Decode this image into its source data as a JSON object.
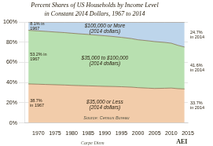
{
  "chart_data": {
    "type": "area",
    "title": "Percent Shares of US Households by Income Level",
    "subtitle": "in Constant 2014 Dollars, 1967 to 2014",
    "x": [
      1967,
      1968,
      1970,
      1972,
      1975,
      1978,
      1980,
      1982,
      1985,
      1988,
      1990,
      1993,
      1995,
      1998,
      2000,
      2003,
      2005,
      2008,
      2010,
      2012,
      2014
    ],
    "series": [
      {
        "name": "$35,000 or Less\n(2014 dollars)",
        "color": "#f2ccaa",
        "values": [
          38.7,
          38.6,
          38.4,
          38.2,
          37.9,
          37.6,
          37.3,
          37.1,
          36.8,
          36.5,
          36.3,
          36.1,
          35.9,
          35.5,
          35.0,
          34.5,
          34.2,
          34.4,
          34.6,
          34.0,
          33.7
        ],
        "value_labels": [
          "38.7%\nin 1967",
          null,
          null,
          null,
          null,
          null,
          null,
          null,
          null,
          null,
          null,
          null,
          null,
          null,
          null,
          null,
          null,
          null,
          null,
          null,
          "33.7%\nin 2014"
        ]
      },
      {
        "name": "$35,000 to $100,000\n(2014 dollars)",
        "color": "#b8e0b0",
        "values": [
          53.2,
          53.1,
          52.9,
          52.7,
          52.3,
          52.0,
          51.7,
          51.4,
          51.0,
          50.5,
          50.2,
          49.5,
          49.0,
          48.2,
          47.5,
          47.0,
          46.5,
          45.5,
          44.5,
          43.0,
          41.6
        ],
        "value_labels": [
          "53.2% in\n1967",
          null,
          null,
          null,
          null,
          null,
          null,
          null,
          null,
          null,
          null,
          null,
          null,
          null,
          null,
          null,
          null,
          null,
          null,
          null,
          "41.6%\nin 2014"
        ]
      },
      {
        "name": "$100,000 or More\n(2014 dollars)",
        "color": "#bdd5eb",
        "values": [
          8.1,
          8.3,
          8.7,
          9.1,
          9.8,
          10.4,
          11.0,
          11.5,
          12.2,
          13.0,
          13.5,
          14.4,
          15.1,
          16.3,
          17.5,
          18.5,
          19.3,
          20.1,
          20.9,
          23.0,
          24.7
        ],
        "value_labels": [
          "8.1% in\n1967",
          null,
          null,
          null,
          null,
          null,
          null,
          null,
          null,
          null,
          null,
          null,
          null,
          null,
          null,
          null,
          null,
          null,
          null,
          null,
          "24.7%\nin 2014"
        ]
      }
    ],
    "stacked": true,
    "xlim": [
      1966,
      2015
    ],
    "xticks": [
      1970,
      1975,
      1980,
      1985,
      1990,
      1995,
      2000,
      2005,
      2010,
      2015
    ],
    "ylim": [
      0,
      100
    ],
    "yticks": [
      {
        "value": 0,
        "label": "0%"
      },
      {
        "value": 20,
        "label": "20%"
      },
      {
        "value": 40,
        "label": "40%"
      },
      {
        "value": 60,
        "label": "60%"
      },
      {
        "value": 80,
        "label": "80%"
      },
      {
        "value": 100,
        "label": "100%"
      }
    ],
    "grid": "y",
    "annotations": [
      "Source: Census Bureau",
      "Carpe Diem",
      "AEI"
    ]
  }
}
